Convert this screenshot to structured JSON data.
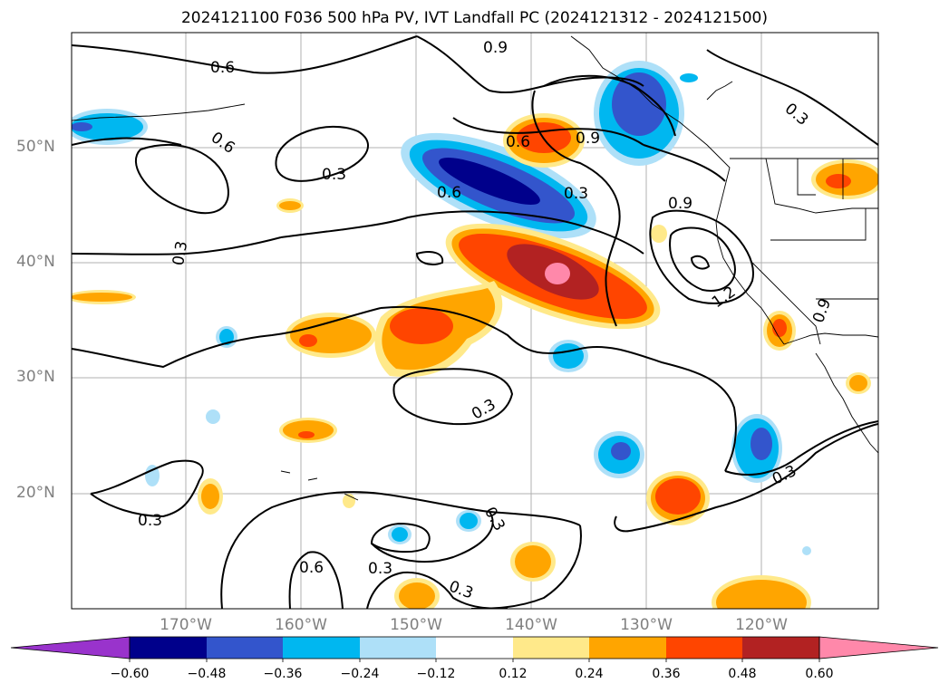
{
  "title": "2024121100 F036 500 hPa PV, IVT Landfall PC (2024121312 - 2024121500)",
  "lat_labels": [
    "50°N",
    "40°N",
    "30°N",
    "20°N"
  ],
  "lon_labels": [
    "170°W",
    "160°W",
    "150°W",
    "140°W",
    "130°W",
    "120°W"
  ],
  "contour_labels": [
    "0.6",
    "0.9",
    "0.6",
    "0.3",
    "0.3",
    "0.6",
    "0.9",
    "0.6",
    "0.3",
    "0.9",
    "0.3",
    "1.2",
    "0.9",
    "0.3",
    "0.3",
    "0.3",
    "0.6",
    "0.3",
    "0.3",
    "0.3"
  ],
  "colorbar": {
    "ticks": [
      "−0.60",
      "−0.48",
      "−0.36",
      "−0.24",
      "−0.12",
      "0.12",
      "0.24",
      "0.36",
      "0.48",
      "0.60"
    ],
    "colors": [
      "#9933cc",
      "#00008b",
      "#3355cc",
      "#00b7f0",
      "#aee0f8",
      "#ffffff",
      "#ffe98a",
      "#ffa500",
      "#ff4500",
      "#b22222",
      "#ff88aa"
    ]
  }
}
